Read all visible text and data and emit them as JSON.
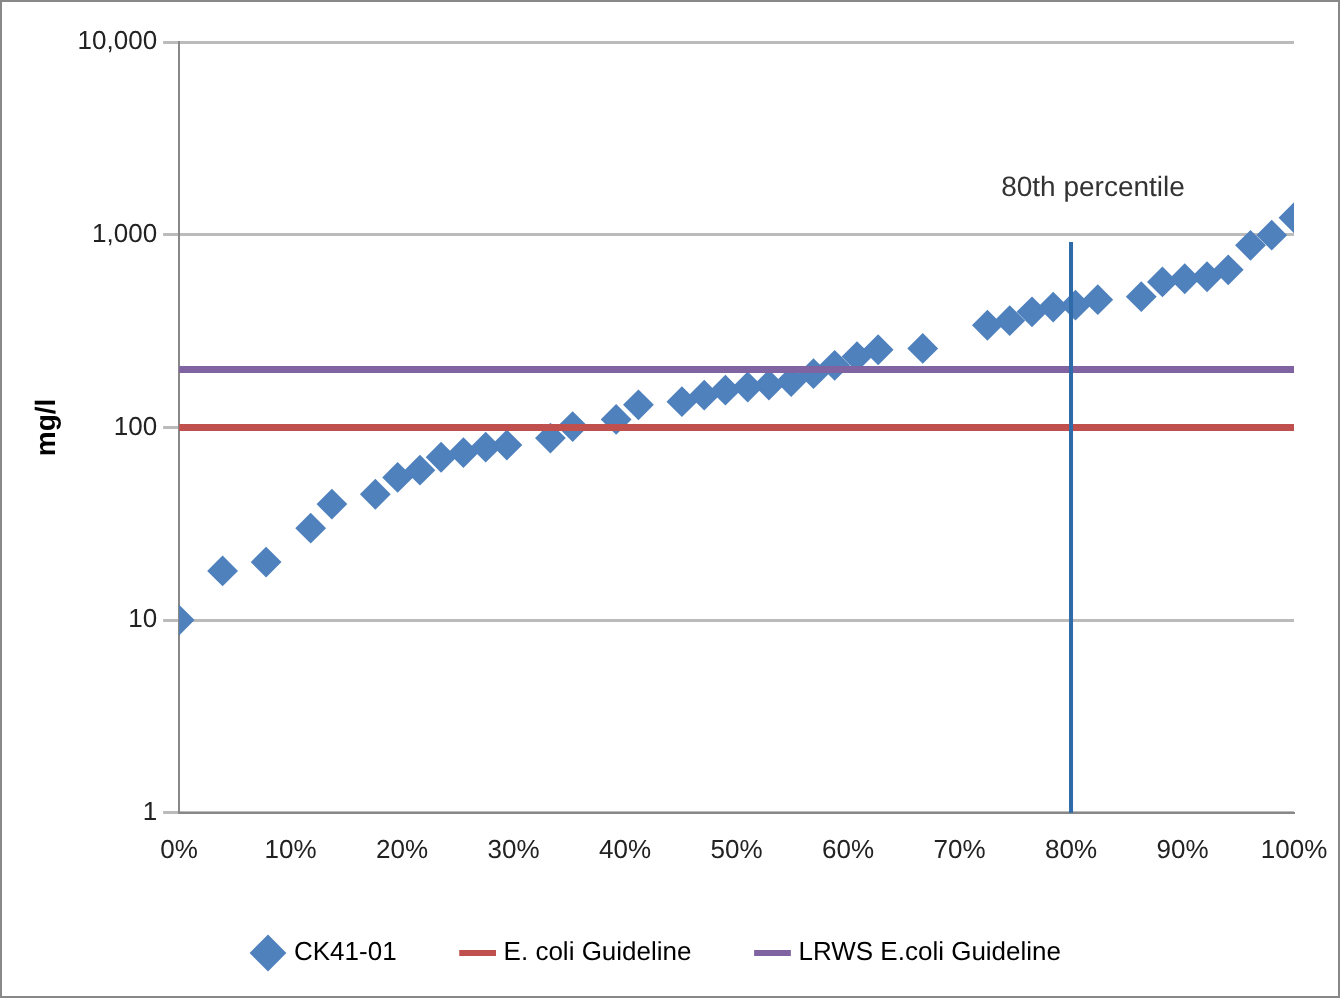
{
  "chart_data": {
    "type": "scatter",
    "ylabel": "mg/l",
    "marker": "diamond",
    "log": "y",
    "grid": "y",
    "legend": "bottom",
    "x": [
      0,
      3.9,
      7.8,
      11.8,
      13.7,
      17.6,
      19.6,
      21.6,
      23.5,
      25.5,
      27.5,
      29.4,
      33.3,
      35.3,
      39.2,
      41.2,
      45.1,
      47.1,
      49,
      51,
      52.9,
      54.9,
      56.9,
      58.8,
      60.8,
      62.7,
      66.7,
      72.5,
      74.5,
      76.5,
      78.4,
      80.4,
      82.4,
      86.3,
      88.2,
      90.2,
      92.2,
      94.1,
      96.1,
      98,
      100
    ],
    "series": [
      {
        "name": "CK41-01",
        "color": "#4f81bd",
        "values": [
          10,
          18,
          20,
          30,
          40,
          45,
          55,
          60,
          70,
          74,
          79,
          81,
          88,
          101,
          110,
          131,
          136,
          147,
          156,
          162,
          166,
          173,
          190,
          210,
          233,
          253,
          257,
          339,
          358,
          398,
          421,
          431,
          460,
          477,
          569,
          591,
          605,
          657,
          881,
          994,
          1225
        ]
      }
    ],
    "xlim": [
      0,
      100
    ],
    "xticks": [
      {
        "value": 0,
        "label": "0%"
      },
      {
        "value": 10,
        "label": "10%"
      },
      {
        "value": 20,
        "label": "20%"
      },
      {
        "value": 30,
        "label": "30%"
      },
      {
        "value": 40,
        "label": "40%"
      },
      {
        "value": 50,
        "label": "50%"
      },
      {
        "value": 60,
        "label": "60%"
      },
      {
        "value": 70,
        "label": "70%"
      },
      {
        "value": 80,
        "label": "80%"
      },
      {
        "value": 90,
        "label": "90%"
      },
      {
        "value": 100,
        "label": "100%"
      }
    ],
    "ylim": [
      1,
      10000
    ],
    "yticks": [
      1,
      10,
      100,
      {
        "value": 1000,
        "label": "1,000"
      },
      {
        "value": 10000,
        "label": "10,000"
      }
    ],
    "ref_lines": [
      {
        "axis": "y",
        "value": 100,
        "label": "E. coli Guideline",
        "color": "#c0504d"
      },
      {
        "axis": "y",
        "value": 200,
        "label": "LRWS E.coli Guideline",
        "color": "#8064a2"
      },
      {
        "axis": "x",
        "value": 80,
        "label": "80th percentile",
        "color": "#2e6ba8"
      }
    ]
  }
}
